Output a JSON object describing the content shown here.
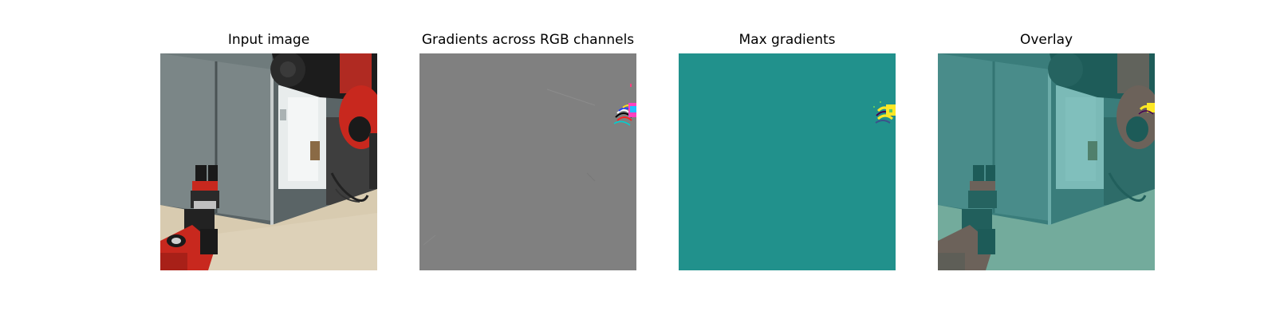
{
  "panels": [
    {
      "title": "Input image"
    },
    {
      "title": "Gradients across RGB channels"
    },
    {
      "title": "Max gradients"
    },
    {
      "title": "Overlay"
    }
  ],
  "colors": {
    "background": "#ffffff",
    "gradient_gray": "#808080",
    "viridis_teal": "#21918c",
    "viridis_yellow": "#fde725",
    "viridis_purple": "#440154",
    "robot_red": "#c8281e",
    "floor_beige": "#d8cbb0"
  }
}
